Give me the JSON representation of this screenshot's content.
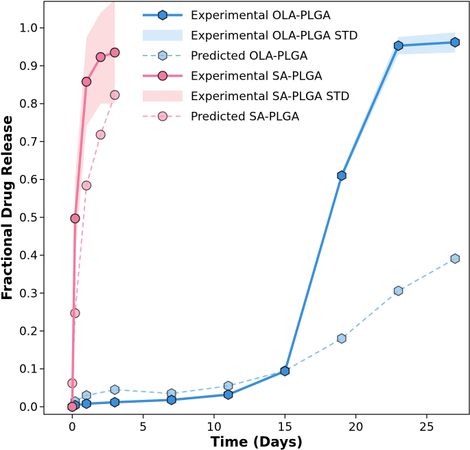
{
  "chart_data": {
    "type": "line",
    "title": "",
    "xlabel": "Time (Days)",
    "ylabel": "Fractional Drug Release",
    "xlim": [
      -2,
      28
    ],
    "ylim": [
      -0.02,
      1.07
    ],
    "xticks": [
      0,
      5,
      10,
      15,
      20,
      25
    ],
    "yticks": [
      0.0,
      0.1,
      0.2,
      0.3,
      0.4,
      0.5,
      0.6,
      0.7,
      0.8,
      0.9,
      1.0
    ],
    "grid": false,
    "legend_placement": "top-center",
    "series": [
      {
        "name": "Experimental OLA-PLGA",
        "kind": "line",
        "style": "solid",
        "marker": "hexagon",
        "color": "#3a8fdc",
        "x": [
          0,
          0.2,
          1,
          3,
          7,
          11,
          15,
          19,
          23,
          27
        ],
        "y": [
          0.0,
          0.004,
          0.008,
          0.012,
          0.018,
          0.032,
          0.094,
          0.61,
          0.953,
          0.962
        ]
      },
      {
        "name": "Experimental OLA-PLGA STD",
        "kind": "band",
        "color": "#cfe6f8",
        "x": [
          0,
          0.2,
          1,
          3,
          7,
          11,
          15,
          19,
          23,
          27
        ],
        "lower": [
          0.0,
          0.002,
          0.005,
          0.009,
          0.015,
          0.028,
          0.09,
          0.6,
          0.93,
          0.935
        ],
        "upper": [
          0.0,
          0.006,
          0.011,
          0.015,
          0.021,
          0.036,
          0.098,
          0.62,
          0.976,
          0.988
        ]
      },
      {
        "name": "Predicted OLA-PLGA",
        "kind": "line",
        "style": "dashed",
        "marker": "hexagon",
        "color": "#8cc0ea",
        "x": [
          0,
          0.2,
          1,
          3,
          7,
          11,
          15,
          19,
          23,
          27
        ],
        "y": [
          0.0,
          0.014,
          0.03,
          0.045,
          0.035,
          0.055,
          0.095,
          0.18,
          0.306,
          0.391
        ]
      },
      {
        "name": "Experimental SA-PLGA",
        "kind": "line",
        "style": "solid",
        "marker": "circle",
        "color": "#f07aa0",
        "x": [
          0,
          0.2,
          1,
          2,
          3
        ],
        "y": [
          0.0,
          0.497,
          0.858,
          0.923,
          0.935
        ]
      },
      {
        "name": "Experimental SA-PLGA STD",
        "kind": "band",
        "color": "#fbd6d9",
        "x": [
          0,
          0.2,
          1,
          2,
          3
        ],
        "lower": [
          0.0,
          0.4,
          0.74,
          0.8,
          0.8
        ],
        "upper": [
          0.0,
          0.6,
          0.975,
          1.04,
          1.075
        ]
      },
      {
        "name": "Predicted SA-PLGA",
        "kind": "line",
        "style": "dashed",
        "marker": "circle",
        "color": "#f5a3bb",
        "x": [
          0,
          0.2,
          1,
          2,
          3
        ],
        "y": [
          0.062,
          0.247,
          0.584,
          0.718,
          0.823
        ]
      }
    ]
  }
}
